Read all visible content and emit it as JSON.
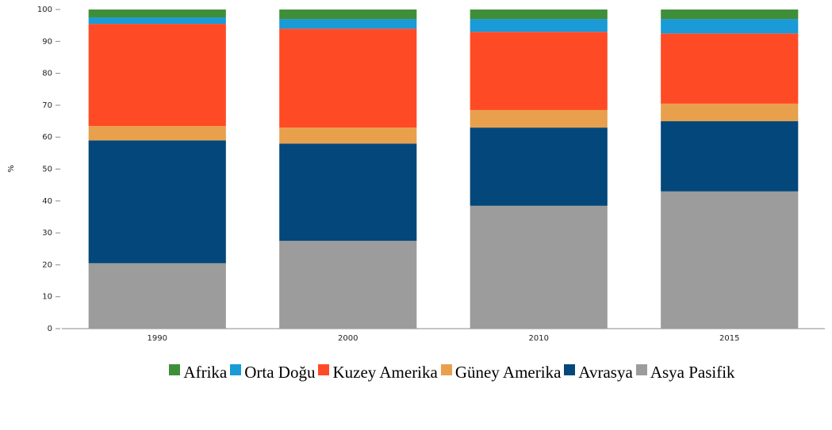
{
  "chart_data": {
    "type": "stacked_bar",
    "y_label": "%",
    "categories": [
      "1990",
      "2000",
      "2010",
      "2015"
    ],
    "series": [
      {
        "name": "Afrika",
        "color": "#3f8f3a",
        "values": [
          2.5,
          3,
          3,
          3
        ]
      },
      {
        "name": "Orta Doğu",
        "color": "#1a9ad6",
        "values": [
          2,
          3,
          4,
          4.5
        ]
      },
      {
        "name": "Kuzey Amerika",
        "color": "#ff4a26",
        "values": [
          32,
          31,
          24.5,
          22
        ]
      },
      {
        "name": "Güney Amerika",
        "color": "#e8a04c",
        "values": [
          4.5,
          5,
          5.5,
          5.5
        ]
      },
      {
        "name": "Avrasya",
        "color": "#04477a",
        "values": [
          38.5,
          30.5,
          24.5,
          22
        ]
      },
      {
        "name": "Asya Pasifik",
        "color": "#9c9c9c",
        "values": [
          20.5,
          27.5,
          38.5,
          43
        ]
      }
    ],
    "ylim": [
      0,
      100
    ],
    "yticks": [
      0,
      10,
      20,
      30,
      40,
      50,
      60,
      70,
      80,
      90,
      100
    ],
    "grid": false
  }
}
